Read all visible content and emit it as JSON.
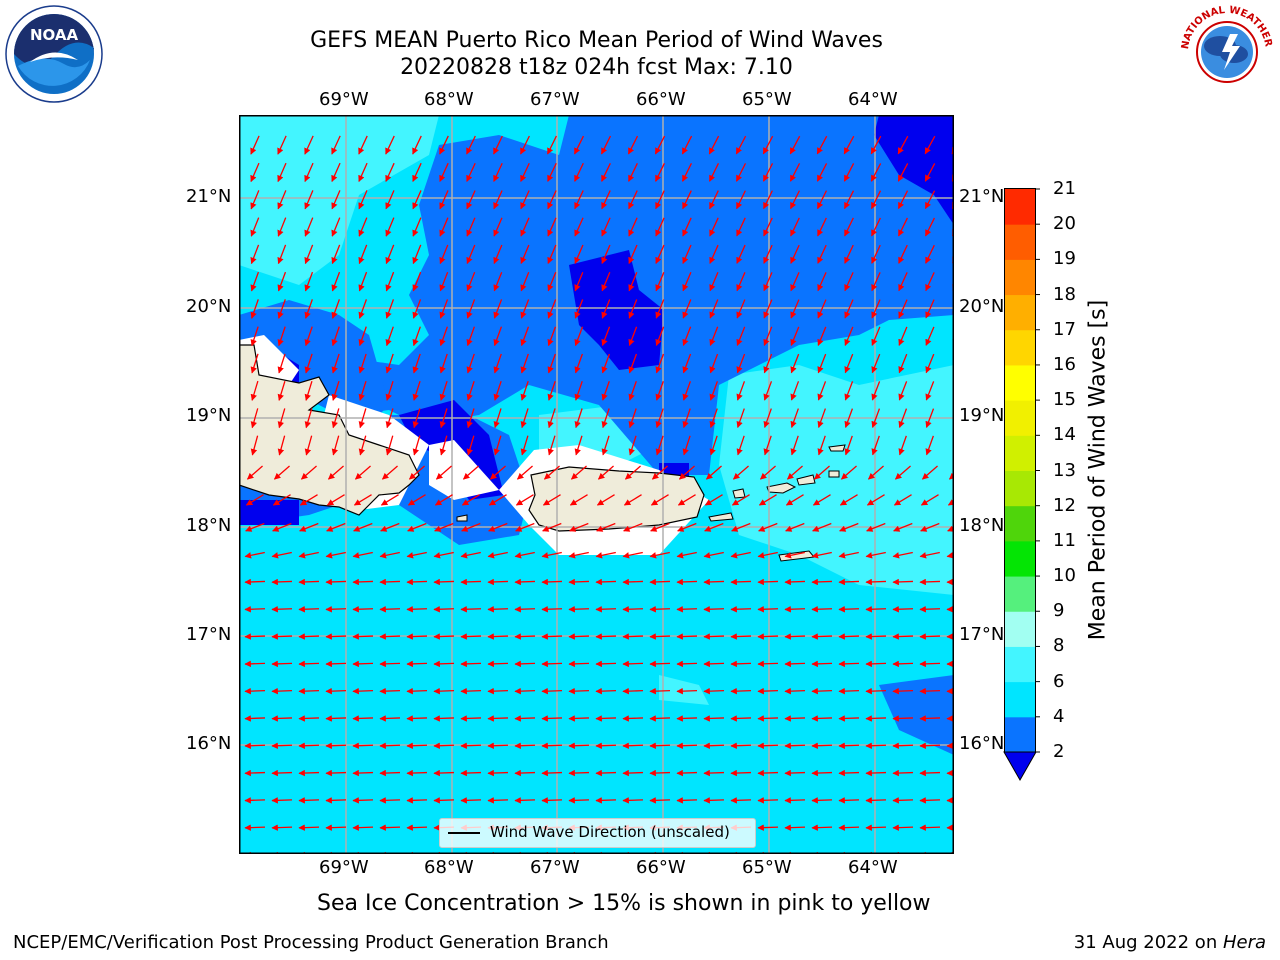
{
  "header": {
    "title_line1": "GEFS MEAN Puerto Rico Mean Period of Wind Waves",
    "title_line2": "20220828 t18z 024h fcst   Max: 7.10"
  },
  "logos": {
    "left": "noaa-logo",
    "right": "national-weather-service-logo"
  },
  "map": {
    "lon_ticks": [
      "69°W",
      "68°W",
      "67°W",
      "66°W",
      "65°W",
      "64°W"
    ],
    "lat_ticks": [
      "21°N",
      "20°N",
      "19°N",
      "18°N",
      "17°N",
      "16°N"
    ],
    "legend_label": "Wind Wave Direction (unscaled)",
    "arrow_color": "#ff0000",
    "land_color": "#efecda"
  },
  "colorbar": {
    "label": "Mean Period of Wind Waves [s]",
    "ticks": [
      "2",
      "4",
      "6",
      "8",
      "9",
      "10",
      "11",
      "12",
      "13",
      "14",
      "15",
      "16",
      "17",
      "18",
      "19",
      "20",
      "21"
    ],
    "colors": [
      "#0a74ff",
      "#00e5ff",
      "#43f5ff",
      "#a2fff2",
      "#55f07d",
      "#04e504",
      "#4fd50b",
      "#a8e804",
      "#d0f000",
      "#f1f000",
      "#ffff00",
      "#ffd600",
      "#ffaf00",
      "#ff8600",
      "#ff5d00",
      "#ff2a00"
    ],
    "under_color": "#0000ee",
    "over_color": "#ff0000"
  },
  "subtitle": "Sea Ice Concentration > 15% is shown in pink to yellow",
  "footer": {
    "left": "NCEP/EMC/Verification Post Processing Product Generation Branch",
    "right_date": "31 Aug 2022 on ",
    "right_machine": "Hera"
  }
}
